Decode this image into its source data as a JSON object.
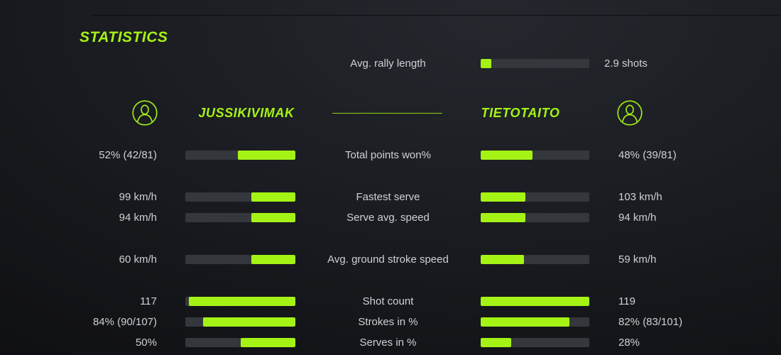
{
  "theme": {
    "accent": "#a5f315",
    "track": "#34373b",
    "text": "#ced1d4"
  },
  "title": "STATISTICS",
  "rally": {
    "label": "Avg. rally length",
    "value": "2.9 shots",
    "fill_pct": 10
  },
  "players": {
    "left": {
      "name": "JUSSIKIVIMAK"
    },
    "right": {
      "name": "TIETOTAITO"
    }
  },
  "stats": [
    {
      "label": "Total points won%",
      "left": {
        "value": "52% (42/81)",
        "fill_pct": 52
      },
      "right": {
        "value": "48% (39/81)",
        "fill_pct": 48
      }
    },
    {
      "label": "Fastest serve",
      "left": {
        "value": "99 km/h",
        "fill_pct": 40
      },
      "right": {
        "value": "103 km/h",
        "fill_pct": 41
      }
    },
    {
      "label": "Serve avg. speed",
      "left": {
        "value": "94 km/h",
        "fill_pct": 40
      },
      "right": {
        "value": "94 km/h",
        "fill_pct": 41
      }
    },
    {
      "label": "Avg. ground stroke speed",
      "left": {
        "value": "60 km/h",
        "fill_pct": 40
      },
      "right": {
        "value": "59 km/h",
        "fill_pct": 40
      }
    },
    {
      "label": "Shot count",
      "left": {
        "value": "117",
        "fill_pct": 97
      },
      "right": {
        "value": "119",
        "fill_pct": 100
      }
    },
    {
      "label": "Strokes in %",
      "left": {
        "value": "84% (90/107)",
        "fill_pct": 84
      },
      "right": {
        "value": "82% (83/101)",
        "fill_pct": 82
      }
    },
    {
      "label": "Serves in %",
      "left": {
        "value": "50%",
        "fill_pct": 50
      },
      "right": {
        "value": "28%",
        "fill_pct": 28
      }
    }
  ],
  "icons": {
    "left_avatar": "user-avatar-icon",
    "right_avatar": "user-avatar-icon"
  }
}
